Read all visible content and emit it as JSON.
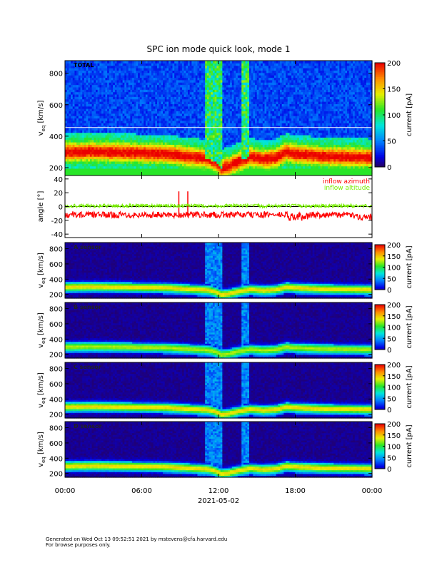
{
  "chart_data": {
    "type": "heatmap",
    "title": "SPC ion mode quick look, mode 1",
    "xlabel": "2021-05-02",
    "x_ticks": [
      "00:00",
      "06:00",
      "12:00",
      "18:00",
      "00:00"
    ],
    "x_range_hours": [
      0,
      24
    ],
    "panels": [
      {
        "kind": "spectrogram",
        "label": "TOTAL",
        "ylabel_main": "v",
        "ylabel_sub": "eq",
        "ylabel_unit": "[km/s]",
        "ylim": [
          150,
          880
        ],
        "y_ticks": [
          200,
          400,
          600,
          800
        ],
        "colorbar_label": "current [pA]",
        "colorbar_ticks": [
          0,
          50,
          100,
          150,
          200
        ],
        "colorbar_range": [
          0,
          200
        ],
        "h_line_value": 455,
        "background": "noisy"
      },
      {
        "kind": "line",
        "ylabel": "angle [°]",
        "ylim": [
          -45,
          45
        ],
        "y_ticks": [
          -40,
          -20,
          0,
          20,
          40
        ],
        "zero_line": true,
        "series": [
          {
            "name": "inflow azimuth",
            "color": "#ff0000",
            "baseline": -12,
            "spikes": [
              {
                "hour": 8.9,
                "value": 22
              },
              {
                "hour": 9.6,
                "value": 22
              }
            ]
          },
          {
            "name": "inflow altitude",
            "color": "#77ee00",
            "baseline": 1
          }
        ]
      },
      {
        "kind": "spectrogram",
        "label": "A sensor",
        "ylabel_main": "v",
        "ylabel_sub": "eq",
        "ylabel_unit": "[km/s]",
        "ylim": [
          150,
          880
        ],
        "y_ticks": [
          200,
          400,
          600,
          800
        ],
        "colorbar_label": "current [pA]",
        "colorbar_ticks": [
          0,
          50,
          100,
          150,
          200
        ],
        "colorbar_range": [
          0,
          200
        ],
        "background": "dark"
      },
      {
        "kind": "spectrogram",
        "label": "B sensor",
        "ylabel_main": "v",
        "ylabel_sub": "eq",
        "ylabel_unit": "[km/s]",
        "ylim": [
          150,
          880
        ],
        "y_ticks": [
          200,
          400,
          600,
          800
        ],
        "colorbar_label": "current [pA]",
        "colorbar_ticks": [
          0,
          50,
          100,
          150,
          200
        ],
        "colorbar_range": [
          0,
          200
        ],
        "background": "dark"
      },
      {
        "kind": "spectrogram",
        "label": "C sensor",
        "ylabel_main": "v",
        "ylabel_sub": "eq",
        "ylabel_unit": "[km/s]",
        "ylim": [
          150,
          880
        ],
        "y_ticks": [
          200,
          400,
          600,
          800
        ],
        "colorbar_label": "current [pA]",
        "colorbar_ticks": [
          0,
          50,
          100,
          150,
          200
        ],
        "colorbar_range": [
          0,
          200
        ],
        "background": "dark"
      },
      {
        "kind": "spectrogram",
        "label": "D sensor",
        "ylabel_main": "v",
        "ylabel_sub": "eq",
        "ylabel_unit": "[km/s]",
        "ylim": [
          150,
          880
        ],
        "y_ticks": [
          200,
          400,
          600,
          800
        ],
        "colorbar_label": "current [pA]",
        "colorbar_ticks": [
          0,
          50,
          100,
          150,
          200
        ],
        "colorbar_range": [
          0,
          200
        ],
        "background": "dark"
      }
    ],
    "solar_wind_speed_profile": [
      {
        "hour": 0,
        "v": 300
      },
      {
        "hour": 2,
        "v": 305
      },
      {
        "hour": 4,
        "v": 300
      },
      {
        "hour": 6,
        "v": 295
      },
      {
        "hour": 8,
        "v": 290
      },
      {
        "hour": 10,
        "v": 270
      },
      {
        "hour": 11.2,
        "v": 260
      },
      {
        "hour": 11.8,
        "v": 235
      },
      {
        "hour": 12.2,
        "v": 200
      },
      {
        "hour": 12.8,
        "v": 210
      },
      {
        "hour": 13.5,
        "v": 240
      },
      {
        "hour": 14.5,
        "v": 270
      },
      {
        "hour": 15.5,
        "v": 255
      },
      {
        "hour": 16.5,
        "v": 265
      },
      {
        "hour": 17.3,
        "v": 300
      },
      {
        "hour": 18,
        "v": 290
      },
      {
        "hour": 20,
        "v": 275
      },
      {
        "hour": 22,
        "v": 270
      },
      {
        "hour": 24,
        "v": 265
      }
    ]
  },
  "footer": {
    "line1": "Generated on Wed Oct 13 09:52:51 2021 by mstevens@cfa.harvard.edu",
    "line2": "For browse purposes only."
  }
}
